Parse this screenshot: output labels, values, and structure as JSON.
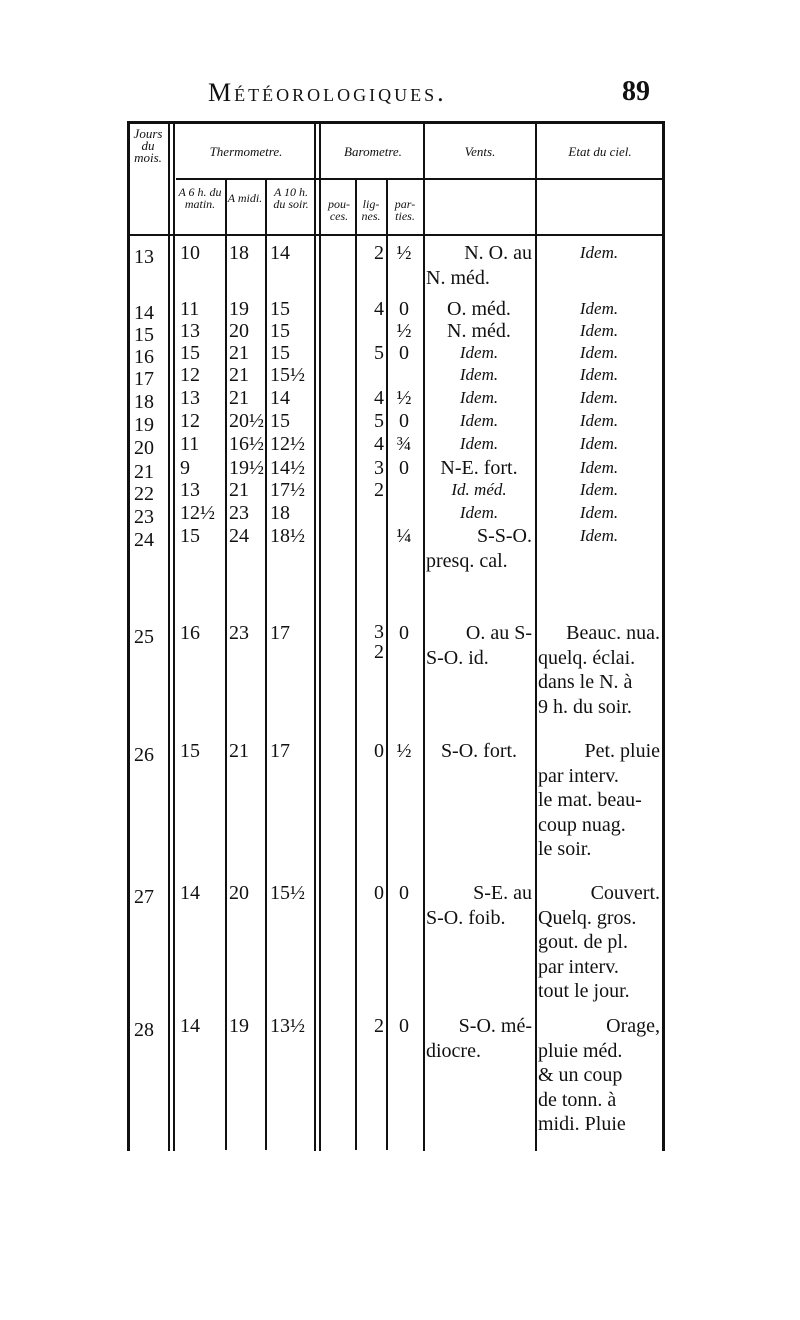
{
  "page": {
    "title": "Météorologiques.",
    "page_number": "89"
  },
  "headers": {
    "jours": "Jours du mois.",
    "thermometre": "Thermometre.",
    "barometre": "Barometre.",
    "vents": "Vents.",
    "etat": "Etat du ciel.",
    "a6h": "A 6 h. du matin.",
    "midi": "A midi.",
    "a10h": "A 10 h. du soir.",
    "pouces": "pou-ces.",
    "lignes": "lig-nes.",
    "parties": "par-ties."
  },
  "rows": [
    {
      "day": "13",
      "t6": "10",
      "t12": "18",
      "t10": "14",
      "pouces": "",
      "lignes": "2",
      "parties": "½",
      "vents": [
        "N. O. au",
        "N. méd."
      ],
      "etat": [
        "Idem."
      ]
    },
    {
      "day": "14",
      "t6": "11",
      "t12": "19",
      "t10": "15",
      "pouces": "",
      "lignes": "4",
      "parties": "0",
      "vents": [
        "O. méd."
      ],
      "etat": [
        "Idem."
      ]
    },
    {
      "day": "15",
      "t6": "13",
      "t12": "20",
      "t10": "15",
      "pouces": "",
      "lignes": "",
      "parties": "½",
      "vents": [
        "N. méd."
      ],
      "etat": [
        "Idem."
      ]
    },
    {
      "day": "16",
      "t6": "15",
      "t12": "21",
      "t10": "15",
      "pouces": "",
      "lignes": "5",
      "parties": "0",
      "vents": [
        "Idem."
      ],
      "etat": [
        "Idem."
      ]
    },
    {
      "day": "17",
      "t6": "12",
      "t12": "21",
      "t10": "15½",
      "pouces": "",
      "lignes": "",
      "parties": "",
      "vents": [
        "Idem."
      ],
      "etat": [
        "Idem."
      ]
    },
    {
      "day": "18",
      "t6": "13",
      "t12": "21",
      "t10": "14",
      "pouces": "",
      "lignes": "4",
      "parties": "½",
      "vents": [
        "Idem."
      ],
      "etat": [
        "Idem."
      ]
    },
    {
      "day": "19",
      "t6": "12",
      "t12": "20½",
      "t10": "15",
      "pouces": "",
      "lignes": "5",
      "parties": "0",
      "vents": [
        "Idem."
      ],
      "etat": [
        "Idem."
      ]
    },
    {
      "day": "20",
      "t6": "11",
      "t12": "16½",
      "t10": "12½",
      "pouces": "",
      "lignes": "4",
      "parties": "¾",
      "vents": [
        "Idem."
      ],
      "etat": [
        "Idem."
      ]
    },
    {
      "day": "21",
      "t6": "9",
      "t12": "19½",
      "t10": "14½",
      "pouces": "",
      "lignes": "3",
      "parties": "0",
      "vents": [
        "N-E. fort."
      ],
      "etat": [
        "Idem."
      ]
    },
    {
      "day": "22",
      "t6": "13",
      "t12": "21",
      "t10": "17½",
      "pouces": "",
      "lignes": "2",
      "parties": "",
      "vents": [
        "Id. méd."
      ],
      "etat": [
        "Idem."
      ]
    },
    {
      "day": "23",
      "t6": "12½",
      "t12": "23",
      "t10": "18",
      "pouces": "",
      "lignes": "",
      "parties": "",
      "vents": [
        "Idem."
      ],
      "etat": [
        "Idem."
      ]
    },
    {
      "day": "24",
      "t6": "15",
      "t12": "24",
      "t10": "18½",
      "pouces": "",
      "lignes": "",
      "parties": "¼",
      "vents": [
        "S-S-O.",
        "presq. cal."
      ],
      "etat": [
        "Idem."
      ]
    },
    {
      "day": "25",
      "t6": "16",
      "t12": "23",
      "t10": "17",
      "pouces": "",
      "lignes": "3\n2",
      "parties": "0",
      "vents": [
        "O. au S-",
        "S-O. id."
      ],
      "etat": [
        "Beauc. nua.",
        "quelq. éclai.",
        "dans le N. à",
        "9 h. du soir."
      ]
    },
    {
      "day": "26",
      "t6": "15",
      "t12": "21",
      "t10": "17",
      "pouces": "",
      "lignes": "0",
      "parties": "½",
      "vents": [
        "S-O. fort."
      ],
      "etat": [
        "Pet. pluie",
        "par interv.",
        "le mat. beau-",
        "coup nuag.",
        "le soir."
      ]
    },
    {
      "day": "27",
      "t6": "14",
      "t12": "20",
      "t10": "15½",
      "pouces": "",
      "lignes": "0",
      "parties": "0",
      "vents": [
        "S-E. au",
        "S-O. foib."
      ],
      "etat": [
        "Couvert.",
        "Quelq. gros.",
        "gout. de pl.",
        "par interv.",
        "tout le jour."
      ]
    },
    {
      "day": "28",
      "t6": "14",
      "t12": "19",
      "t10": "13½",
      "pouces": "",
      "lignes": "2",
      "parties": "0",
      "vents": [
        "S-O. mé-",
        "diocre."
      ],
      "etat": [
        "Orage,",
        "pluie méd.",
        "& un coup",
        "de tonn. à",
        "midi. Pluie"
      ]
    }
  ]
}
